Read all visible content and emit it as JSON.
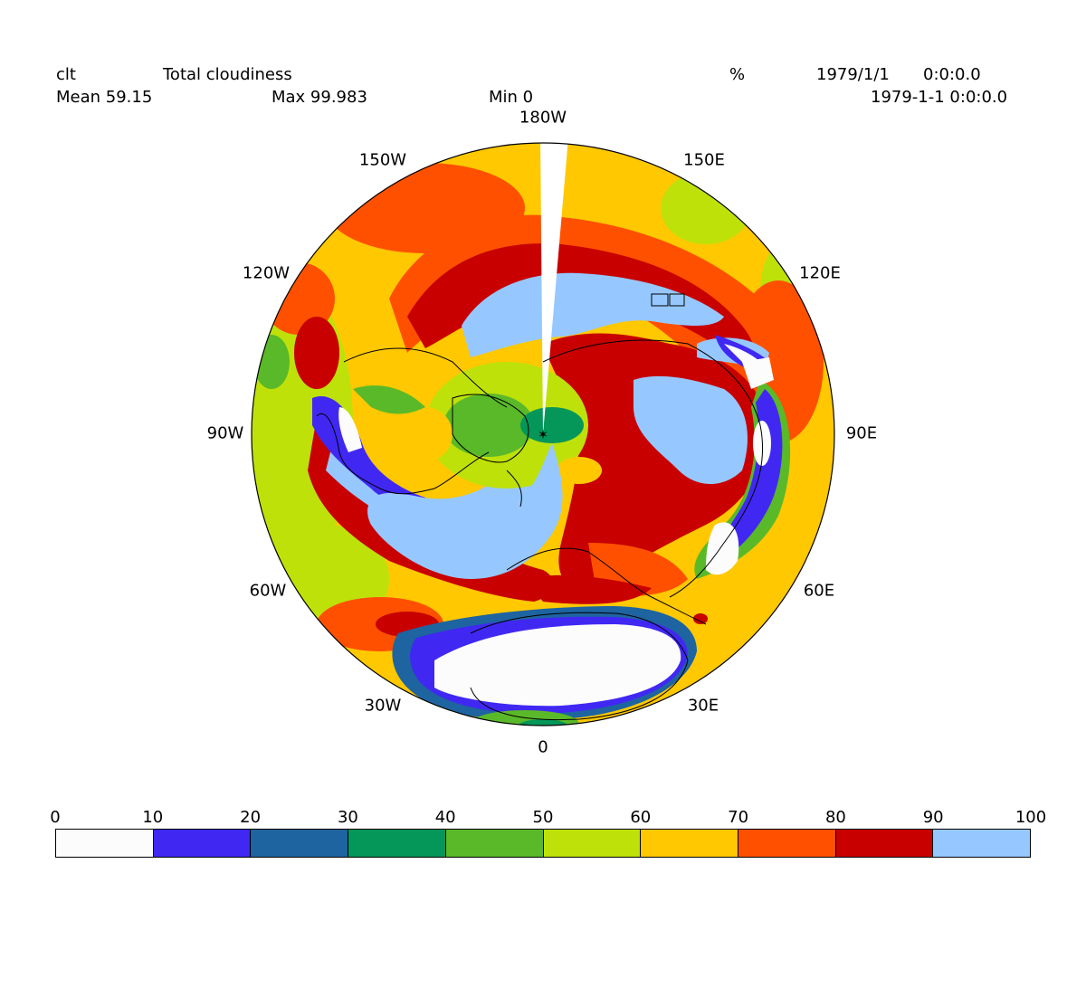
{
  "header": {
    "variable": "clt",
    "long_name": "Total cloudiness",
    "units": "%",
    "date": "1979/1/1",
    "time": "0:0:0.0",
    "datetime": "1979-1-1 0:0:0.0",
    "mean": "Mean 59.15",
    "max": "Max 99.983",
    "min": "Min 0"
  },
  "map": {
    "projection": "polar-stereographic-north",
    "longitude_labels": [
      "180W",
      "150E",
      "120E",
      "90E",
      "60E",
      "30E",
      "0",
      "30W",
      "60W",
      "90W",
      "120W",
      "150W"
    ],
    "coastline_color": "#000000"
  },
  "colorbar": {
    "ticks": [
      "0",
      "10",
      "20",
      "30",
      "40",
      "50",
      "60",
      "70",
      "80",
      "90",
      "100"
    ],
    "colors": [
      "#fcfcfc",
      "#4028f2",
      "#1e64a0",
      "#05965a",
      "#5ab928",
      "#bee10a",
      "#ffc800",
      "#ff5000",
      "#c80000",
      "#96c8ff"
    ]
  }
}
